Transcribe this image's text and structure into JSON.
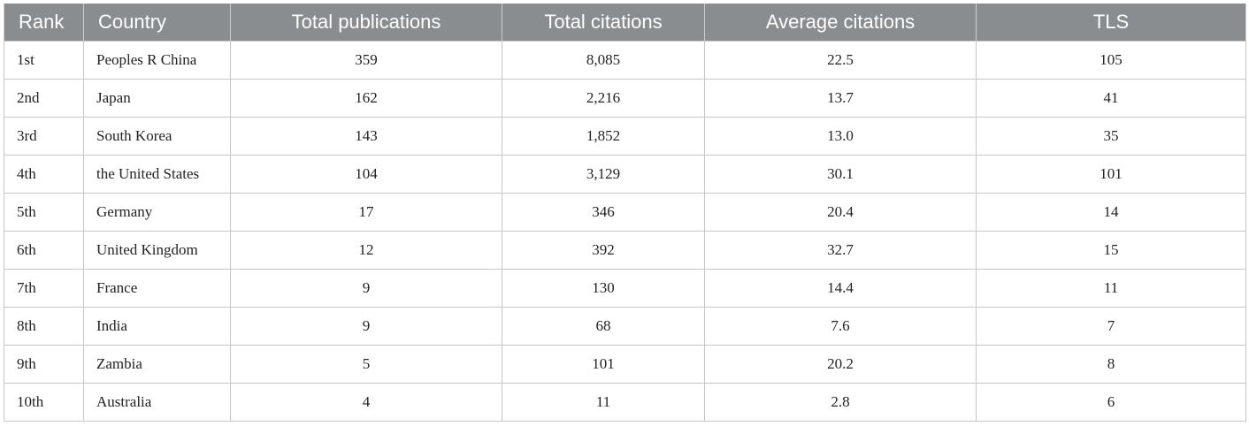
{
  "table": {
    "columns": [
      "Rank",
      "Country",
      "Total publications",
      "Total citations",
      "Average citations",
      "TLS"
    ],
    "rows": [
      [
        "1st",
        "Peoples R China",
        "359",
        "8,085",
        "22.5",
        "105"
      ],
      [
        "2nd",
        "Japan",
        "162",
        "2,216",
        "13.7",
        "41"
      ],
      [
        "3rd",
        "South Korea",
        "143",
        "1,852",
        "13.0",
        "35"
      ],
      [
        "4th",
        "the United States",
        "104",
        "3,129",
        "30.1",
        "101"
      ],
      [
        "5th",
        "Germany",
        "17",
        "346",
        "20.4",
        "14"
      ],
      [
        "6th",
        "United Kingdom",
        "12",
        "392",
        "32.7",
        "15"
      ],
      [
        "7th",
        "France",
        "9",
        "130",
        "14.4",
        "11"
      ],
      [
        "8th",
        "India",
        "9",
        "68",
        "7.6",
        "7"
      ],
      [
        "9th",
        "Zambia",
        "5",
        "101",
        "20.2",
        "8"
      ],
      [
        "10th",
        "Australia",
        "4",
        "11",
        "2.8",
        "6"
      ]
    ]
  },
  "colors": {
    "header_bg": "#8a8d8f",
    "header_text": "#ffffff",
    "grid": "#c4c6c8",
    "cell_text": "#222222"
  }
}
